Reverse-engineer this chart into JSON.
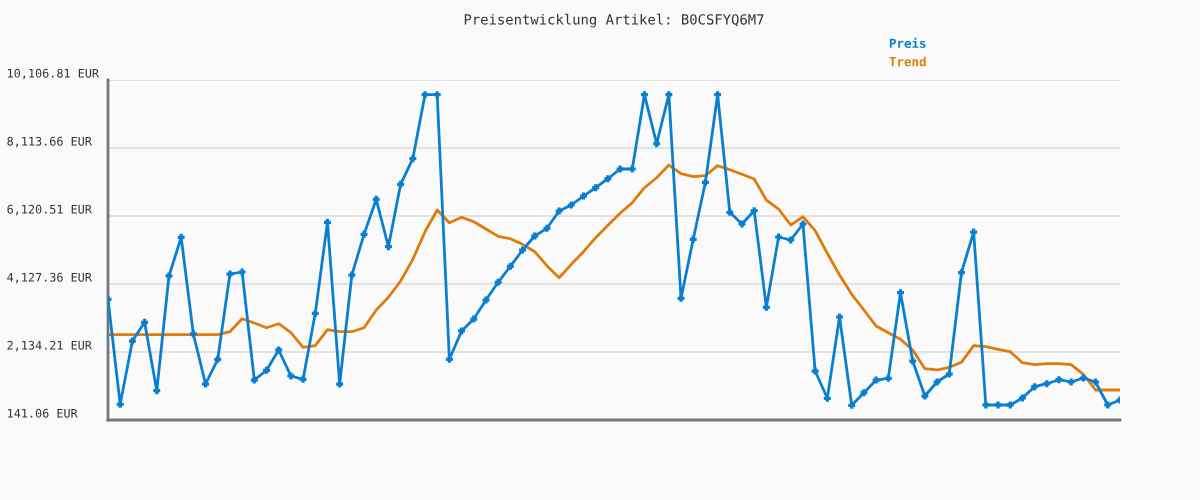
{
  "chart_data": {
    "type": "line",
    "title": "Preisentwicklung Artikel: B0CSFYQ6M7",
    "categories": [
      null,
      null,
      null,
      null,
      null,
      null,
      null,
      null,
      null,
      null,
      null,
      null,
      null,
      null,
      null,
      null,
      null,
      null,
      null,
      null,
      null,
      null,
      null,
      null,
      null,
      null,
      null,
      null,
      null,
      null,
      null,
      null,
      null,
      null,
      null,
      null,
      null,
      null,
      null,
      null,
      null,
      null,
      null,
      null,
      null,
      null,
      null,
      null,
      null,
      null,
      null,
      null,
      null,
      null,
      null,
      null,
      null,
      null,
      null,
      null,
      null,
      null,
      null,
      null,
      null,
      null,
      null,
      null,
      null,
      null,
      null,
      null,
      null,
      null,
      null,
      null,
      null,
      null,
      null,
      null,
      null,
      null,
      null,
      null
    ],
    "series": [
      {
        "name": "Preis",
        "color": "#0a7fd0",
        "marker": "cross",
        "values": [
          3679,
          601,
          2456,
          3005,
          1000,
          4362,
          5496,
          2662,
          1196,
          1920,
          4420,
          4479,
          1313,
          1598,
          2193,
          1431,
          1334,
          3268,
          5936,
          1196,
          4391,
          5584,
          6610,
          5220,
          7049,
          7800,
          9676,
          9676,
          1920,
          2750,
          3101,
          3658,
          4177,
          4646,
          5124,
          5534,
          5760,
          6267,
          6443,
          6706,
          6950,
          7213,
          7498,
          7498,
          9676,
          8239,
          9676,
          3708,
          5437,
          7108,
          9676,
          6229,
          5886,
          6276,
          3444,
          5505,
          5417,
          5886,
          1577,
          777,
          3160,
          572,
          941,
          1313,
          1363,
          3872,
          1870,
          844,
          1255,
          1489,
          4458,
          5651,
          581,
          581,
          581,
          786,
          1117,
          1205,
          1322,
          1255,
          1372,
          1255,
          581,
          727
        ]
      },
      {
        "name": "Trend",
        "color": "#e07b0a",
        "marker": "none",
        "values": [
          2641,
          2641,
          2641,
          2641,
          2641,
          2641,
          2641,
          2641,
          2641,
          2641,
          2729,
          3110,
          2984,
          2846,
          2963,
          2700,
          2272,
          2319,
          2788,
          2729,
          2729,
          2846,
          3365,
          3738,
          4215,
          4851,
          5660,
          6296,
          5924,
          6082,
          5953,
          5739,
          5525,
          5455,
          5290,
          5074,
          4664,
          4312,
          4704,
          5074,
          5485,
          5847,
          6199,
          6510,
          6950,
          7243,
          7615,
          7360,
          7272,
          7301,
          7595,
          7478,
          7342,
          7205,
          6589,
          6325,
          5856,
          6100,
          5690,
          5027,
          4391,
          3825,
          3365,
          2896,
          2700,
          2506,
          2193,
          1645,
          1607,
          1686,
          1832,
          2319,
          2290,
          2213,
          2143,
          1821,
          1762,
          1791,
          1791,
          1762,
          1481,
          1020,
          1020,
          1020
        ]
      }
    ],
    "ylim": [
      141.06,
      10106.81
    ],
    "yticks": [
      {
        "value": 141.06,
        "label": "141.06 EUR"
      },
      {
        "value": 2134.21,
        "label": "2,134.21 EUR"
      },
      {
        "value": 4127.36,
        "label": "4,127.36 EUR"
      },
      {
        "value": 6120.51,
        "label": "6,120.51 EUR"
      },
      {
        "value": 8113.66,
        "label": "8,113.66 EUR"
      },
      {
        "value": 10106.81,
        "label": "10,106.81 EUR"
      }
    ],
    "grid": "y",
    "legend": "top right",
    "line_style": "solid"
  }
}
